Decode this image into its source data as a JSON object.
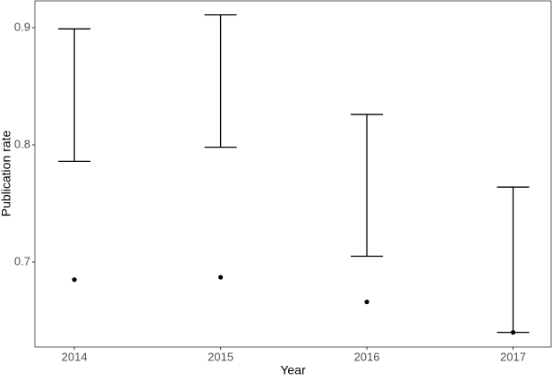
{
  "chart_data": {
    "type": "errorbar",
    "x_label": "Year",
    "y_label": "Publication rate",
    "x": [
      2014,
      2015,
      2016,
      2017
    ],
    "values": [
      0.685,
      0.687,
      0.666,
      0.64
    ],
    "lower": [
      0.786,
      0.798,
      0.705,
      0.64
    ],
    "upper": [
      0.899,
      0.911,
      0.826,
      0.764
    ],
    "color": "#000000",
    "xlim": [
      2013.73,
      2017.26
    ],
    "xticks": [
      2014,
      2015,
      2016,
      2017
    ],
    "ylim": [
      0.6275,
      0.9229
    ],
    "yticks": [
      0.7,
      0.8,
      0.9
    ],
    "grid": true
  }
}
